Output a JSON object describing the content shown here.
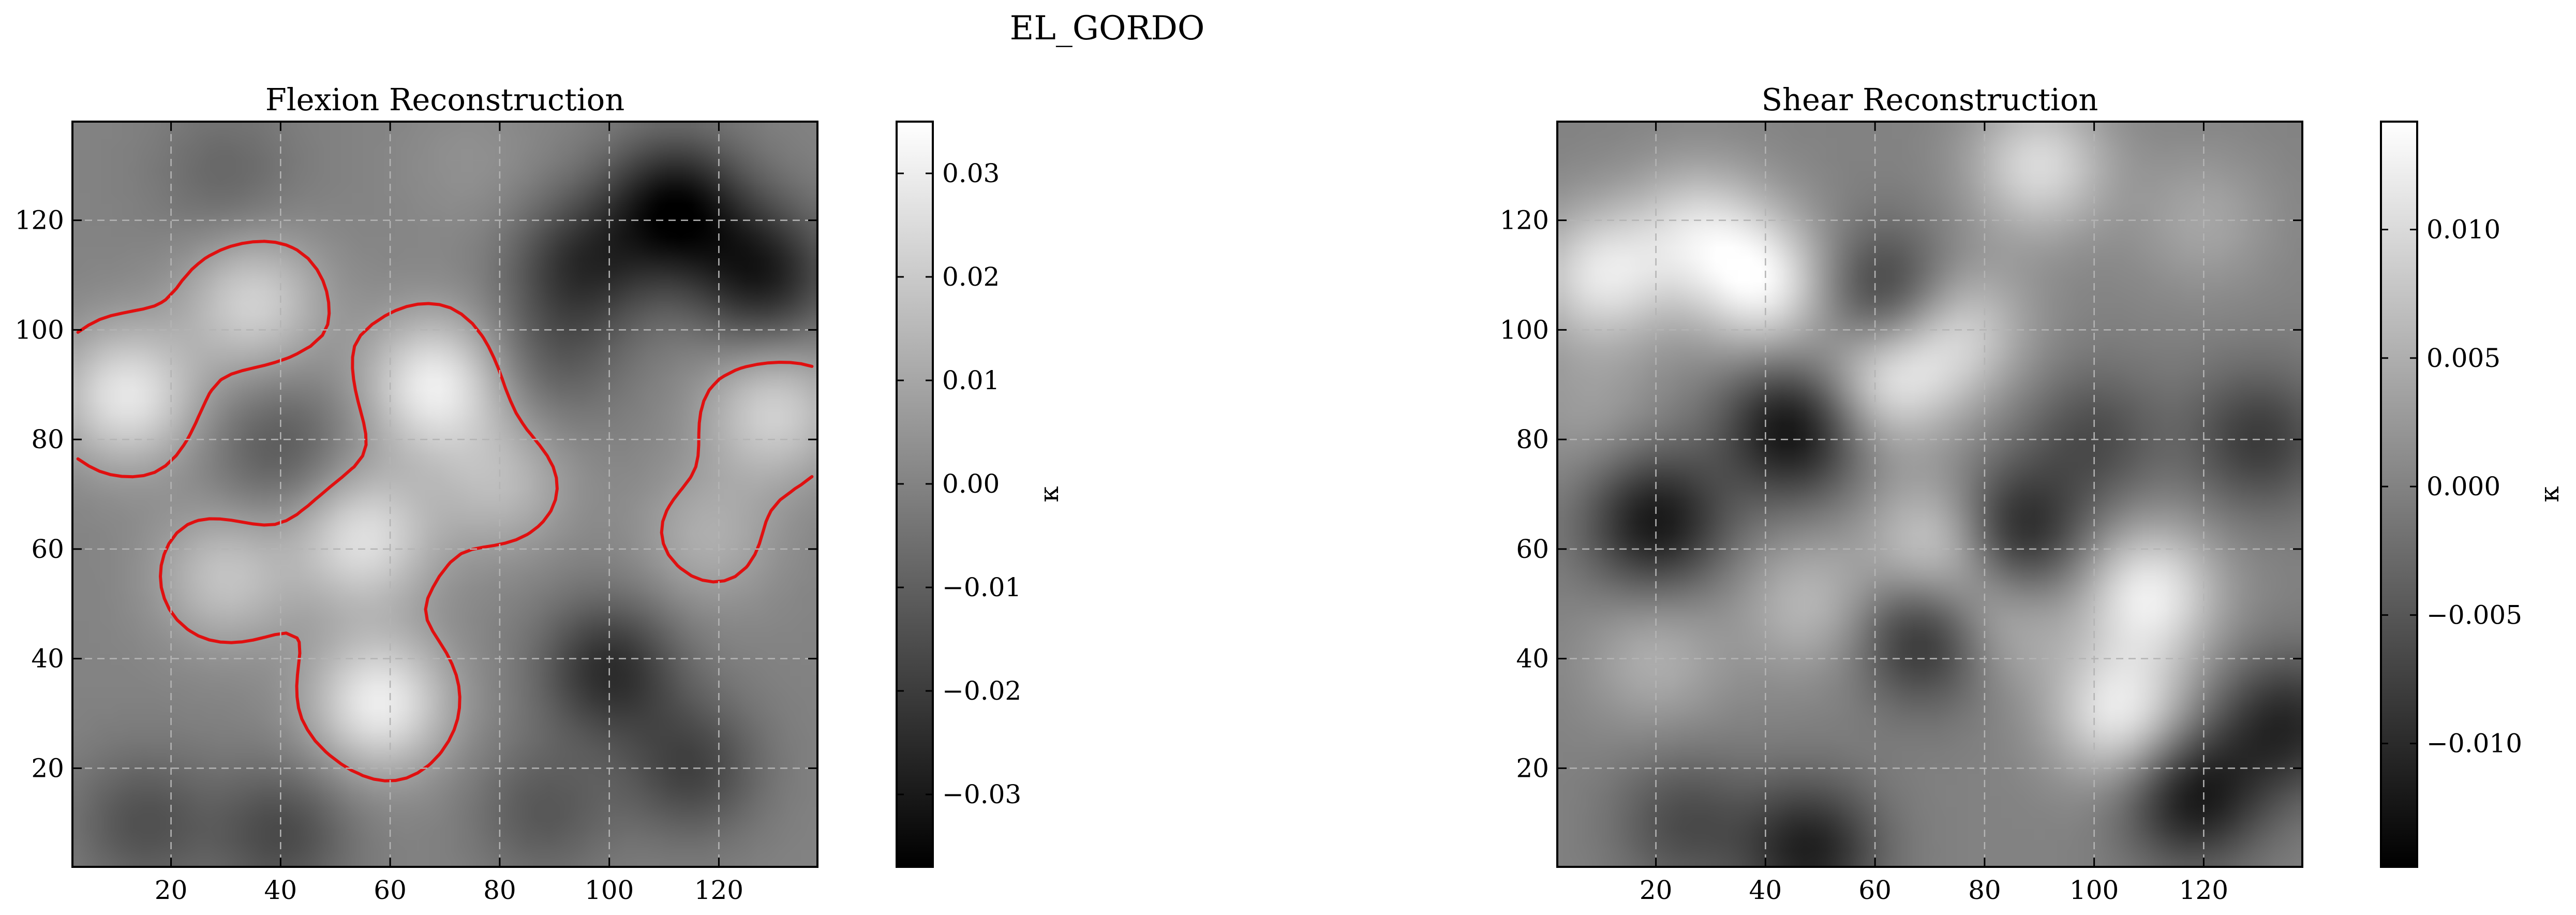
{
  "figure": {
    "suptitle": "EL_GORDO"
  },
  "chart_data": [
    {
      "type": "heatmap",
      "title": "Flexion Reconstruction",
      "colormap": "gray",
      "xlim": [
        2,
        138
      ],
      "ylim": [
        2,
        138
      ],
      "xticks": [
        20,
        40,
        60,
        80,
        100,
        120
      ],
      "yticks": [
        20,
        40,
        60,
        80,
        100,
        120
      ],
      "grid": true,
      "colorbar": {
        "label": "κ",
        "vmin": -0.037,
        "vmax": 0.035,
        "ticks": [
          -0.03,
          -0.02,
          -0.01,
          0.0,
          0.01,
          0.02,
          0.03
        ],
        "tick_labels": [
          "−0.03",
          "−0.02",
          "−0.01",
          "0.00",
          "0.01",
          "0.02",
          "0.03"
        ]
      },
      "contour_color": "#e01010",
      "features": [
        {
          "x": 12,
          "y": 88,
          "v": 0.028
        },
        {
          "x": 35,
          "y": 105,
          "v": 0.022
        },
        {
          "x": 68,
          "y": 90,
          "v": 0.03
        },
        {
          "x": 55,
          "y": 62,
          "v": 0.026
        },
        {
          "x": 30,
          "y": 55,
          "v": 0.018
        },
        {
          "x": 40,
          "y": 78,
          "v": -0.012
        },
        {
          "x": 58,
          "y": 32,
          "v": 0.03
        },
        {
          "x": 80,
          "y": 72,
          "v": 0.015
        },
        {
          "x": 112,
          "y": 122,
          "v": -0.034
        },
        {
          "x": 95,
          "y": 112,
          "v": -0.022
        },
        {
          "x": 128,
          "y": 110,
          "v": -0.028
        },
        {
          "x": 100,
          "y": 38,
          "v": -0.024
        },
        {
          "x": 115,
          "y": 20,
          "v": -0.018
        },
        {
          "x": 118,
          "y": 62,
          "v": 0.012
        },
        {
          "x": 130,
          "y": 85,
          "v": 0.022
        },
        {
          "x": 15,
          "y": 10,
          "v": -0.014
        },
        {
          "x": 40,
          "y": 8,
          "v": -0.016
        },
        {
          "x": 88,
          "y": 12,
          "v": -0.012
        },
        {
          "x": 90,
          "y": 95,
          "v": -0.01
        },
        {
          "x": 30,
          "y": 128,
          "v": -0.008
        },
        {
          "x": 75,
          "y": 130,
          "v": 0.004
        }
      ]
    },
    {
      "type": "heatmap",
      "title": "Shear Reconstruction",
      "colormap": "gray",
      "xlim": [
        2,
        138
      ],
      "ylim": [
        2,
        138
      ],
      "xticks": [
        20,
        40,
        60,
        80,
        100,
        120
      ],
      "yticks": [
        20,
        40,
        60,
        80,
        100,
        120
      ],
      "grid": true,
      "colorbar": {
        "label": "κ",
        "vmin": -0.0148,
        "vmax": 0.0142,
        "ticks": [
          -0.01,
          -0.005,
          0.0,
          0.005,
          0.01
        ],
        "tick_labels": [
          "−0.010",
          "−0.005",
          "0.000",
          "0.005",
          "0.010"
        ]
      },
      "features": [
        {
          "x": 10,
          "y": 110,
          "v": 0.011
        },
        {
          "x": 40,
          "y": 108,
          "v": 0.012
        },
        {
          "x": 28,
          "y": 118,
          "v": 0.009
        },
        {
          "x": 62,
          "y": 92,
          "v": 0.012
        },
        {
          "x": 75,
          "y": 100,
          "v": 0.009
        },
        {
          "x": 72,
          "y": 60,
          "v": 0.011
        },
        {
          "x": 82,
          "y": 48,
          "v": 0.008
        },
        {
          "x": 110,
          "y": 52,
          "v": 0.012
        },
        {
          "x": 105,
          "y": 30,
          "v": 0.012
        },
        {
          "x": 90,
          "y": 130,
          "v": 0.01
        },
        {
          "x": 48,
          "y": 50,
          "v": 0.006
        },
        {
          "x": 20,
          "y": 40,
          "v": 0.005
        },
        {
          "x": 45,
          "y": 82,
          "v": -0.013
        },
        {
          "x": 20,
          "y": 65,
          "v": -0.012
        },
        {
          "x": 62,
          "y": 105,
          "v": -0.011
        },
        {
          "x": 85,
          "y": 62,
          "v": -0.013
        },
        {
          "x": 70,
          "y": 45,
          "v": -0.012
        },
        {
          "x": 118,
          "y": 15,
          "v": -0.012
        },
        {
          "x": 48,
          "y": 5,
          "v": -0.011
        },
        {
          "x": 130,
          "y": 80,
          "v": -0.008
        },
        {
          "x": 100,
          "y": 80,
          "v": -0.006
        },
        {
          "x": 135,
          "y": 28,
          "v": -0.01
        },
        {
          "x": 25,
          "y": 10,
          "v": -0.006
        },
        {
          "x": 120,
          "y": 120,
          "v": 0.004
        },
        {
          "x": 8,
          "y": 85,
          "v": 0.003
        }
      ]
    }
  ]
}
